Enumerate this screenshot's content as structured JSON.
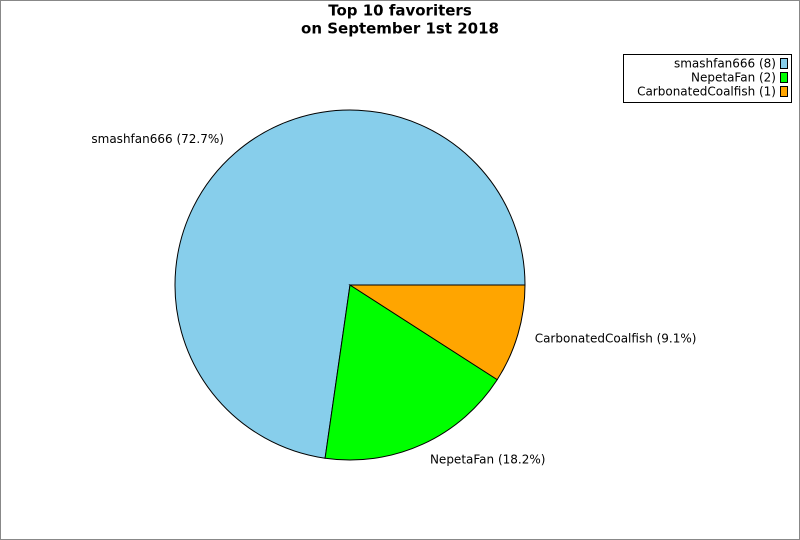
{
  "chart_data": {
    "type": "pie",
    "title": "Top 10 favoriters",
    "subtitle": "on September 1st 2018",
    "categories": [
      "smashfan666",
      "NepetaFan",
      "CarbonatedCoalfish"
    ],
    "values": [
      8,
      2,
      1
    ],
    "colors": [
      "#87ceeb",
      "#00ff00",
      "#ffa500"
    ],
    "slice_labels": [
      "smashfan666 (72.7%)",
      "NepetaFan (18.2%)",
      "CarbonatedCoalfish (9.1%)"
    ],
    "legend_labels": [
      "smashfan666 (8)",
      "NepetaFan (2)",
      "CarbonatedCoalfish (1)"
    ],
    "legend": "top-right"
  }
}
